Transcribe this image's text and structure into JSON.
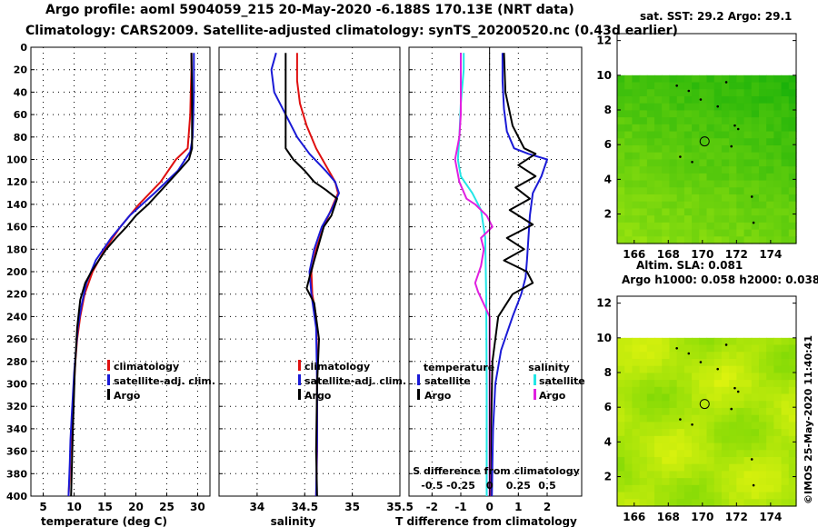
{
  "figure": {
    "title_line1": "Argo profile: aoml 5904059_215 20-May-2020 -6.188S 170.13E (NRT data)",
    "title_line2": "Climatology: CARS2009. Satellite-adjusted climatology: synTS_20200520.nc (0.43d earlier)",
    "credit": "©IMOS 25-May-2020 11:40:41"
  },
  "colors": {
    "climatology": "#e01010",
    "satellite": "#1a1ad6",
    "argo": "#000000",
    "salinity_sat": "#22e6e6",
    "salinity_diff": "#e020e0"
  },
  "chart_data": [
    {
      "id": "temperature",
      "type": "line",
      "xlabel": "temperature (deg C)",
      "ylabel": "",
      "xlim": [
        3,
        32
      ],
      "ylim": [
        400,
        0
      ],
      "xticks": [
        5,
        10,
        15,
        20,
        25,
        30
      ],
      "yticks": [
        0,
        20,
        40,
        60,
        80,
        100,
        120,
        140,
        160,
        180,
        200,
        220,
        240,
        260,
        280,
        300,
        320,
        340,
        360,
        380,
        400
      ],
      "grid": true,
      "legend_position": "lower-right",
      "series": [
        {
          "name": "climatology",
          "color": "#e01010",
          "x": [
            29.0,
            29.0,
            28.9,
            28.8,
            28.4,
            26.5,
            24.0,
            20.5,
            17.5,
            15.0,
            13.0,
            11.7,
            11.0,
            10.5,
            10.2,
            10.0,
            9.8,
            9.6,
            9.4,
            9.3,
            9.1
          ],
          "y": [
            5,
            20,
            40,
            60,
            90,
            100,
            120,
            140,
            160,
            180,
            200,
            220,
            240,
            260,
            280,
            300,
            320,
            340,
            360,
            380,
            400
          ]
        },
        {
          "name": "satellite-adj. clim.",
          "color": "#1a1ad6",
          "x": [
            29.4,
            29.4,
            29.4,
            29.3,
            29.2,
            28.8,
            26.8,
            23.0,
            19.0,
            16.0,
            13.5,
            12.0,
            11.2,
            10.6,
            10.3,
            10.0,
            9.8,
            9.6,
            9.4,
            9.3,
            9.1
          ],
          "y": [
            5,
            20,
            40,
            60,
            80,
            93,
            110,
            130,
            150,
            170,
            190,
            210,
            230,
            250,
            270,
            290,
            310,
            330,
            350,
            370,
            400
          ]
        },
        {
          "name": "Argo",
          "color": "#000000",
          "x": [
            29.0,
            29.1,
            29.1,
            29.1,
            28.6,
            27.0,
            24.5,
            22.0,
            20.0,
            18.5,
            16.8,
            15.2,
            14.0,
            12.8,
            11.8,
            11.0,
            10.5,
            10.1,
            9.8,
            9.5
          ],
          "y": [
            5,
            40,
            80,
            90,
            100,
            110,
            125,
            140,
            150,
            160,
            170,
            180,
            190,
            200,
            210,
            225,
            250,
            290,
            340,
            400
          ]
        }
      ],
      "legend": [
        "climatology",
        "satellite-adj. clim.",
        "Argo"
      ]
    },
    {
      "id": "salinity",
      "type": "line",
      "xlabel": "salinity",
      "xlim": [
        33.6,
        35.5
      ],
      "ylim": [
        400,
        0
      ],
      "xticks": [
        34,
        34.5,
        35,
        35.5
      ],
      "grid": true,
      "legend_position": "lower-right",
      "series": [
        {
          "name": "climatology",
          "color": "#e01010",
          "x": [
            34.42,
            34.42,
            34.45,
            34.52,
            34.62,
            34.72,
            34.82,
            34.85,
            34.8,
            34.7,
            34.62,
            34.57,
            34.58,
            34.62,
            34.63,
            34.63,
            34.63,
            34.62
          ],
          "y": [
            5,
            30,
            50,
            70,
            90,
            105,
            120,
            130,
            140,
            160,
            180,
            200,
            220,
            240,
            280,
            320,
            360,
            400
          ]
        },
        {
          "name": "satellite-adj. clim.",
          "color": "#1a1ad6",
          "x": [
            34.2,
            34.15,
            34.18,
            34.3,
            34.42,
            34.55,
            34.72,
            34.82,
            34.86,
            34.78,
            34.68,
            34.6,
            34.55,
            34.57,
            34.62,
            34.63,
            34.63,
            34.62
          ],
          "y": [
            5,
            20,
            40,
            60,
            80,
            95,
            110,
            120,
            130,
            145,
            160,
            180,
            200,
            220,
            250,
            300,
            350,
            400
          ]
        },
        {
          "name": "Argo",
          "color": "#000000",
          "x": [
            34.3,
            34.3,
            34.3,
            34.38,
            34.5,
            34.6,
            34.72,
            34.84,
            34.78,
            34.7,
            34.65,
            34.6,
            34.55,
            34.52,
            34.6,
            34.65,
            34.63,
            34.62,
            34.63
          ],
          "y": [
            5,
            85,
            90,
            100,
            110,
            120,
            127,
            135,
            150,
            160,
            175,
            190,
            205,
            215,
            228,
            260,
            300,
            360,
            400
          ]
        }
      ],
      "legend": [
        "climatology",
        "satellite-adj. clim.",
        "Argo"
      ]
    },
    {
      "id": "difference",
      "type": "line",
      "xlabel": "T difference from climatology",
      "top_axis_label": "S difference from climatology",
      "xlim": [
        -2.8,
        3.2
      ],
      "ylim": [
        400,
        0
      ],
      "xticks": [
        -2,
        -1,
        0,
        1,
        2
      ],
      "top_ticks": [
        "-0.5",
        "-0.25",
        "0",
        "0.25",
        "0.5"
      ],
      "top_tick_values": [
        -0.5,
        -0.25,
        0,
        0.25,
        0.5
      ],
      "s_scale": 4,
      "grid": true,
      "legend_groups": {
        "left_title": "temperature",
        "right_title": "salinity"
      },
      "series": [
        {
          "name": "satellite",
          "group": "temperature",
          "color": "#1a1ad6",
          "x": [
            0.45,
            0.45,
            0.5,
            0.6,
            0.85,
            1.35,
            2.0,
            1.8,
            1.5,
            1.4,
            1.35,
            1.3,
            1.25,
            1.1,
            0.8,
            0.4,
            0.2,
            0.12,
            0.1,
            0.08
          ],
          "y": [
            5,
            30,
            55,
            75,
            90,
            95,
            100,
            115,
            130,
            150,
            170,
            190,
            205,
            220,
            240,
            270,
            300,
            340,
            370,
            400
          ]
        },
        {
          "name": "Argo",
          "group": "temperature",
          "color": "#000000",
          "x": [
            0.5,
            0.55,
            0.8,
            1.2,
            1.6,
            1.0,
            1.6,
            0.9,
            1.4,
            0.7,
            1.5,
            0.6,
            1.2,
            0.5,
            1.3,
            1.5,
            0.8,
            0.3,
            0.1,
            0.05,
            0.02
          ],
          "y": [
            5,
            40,
            70,
            90,
            95,
            105,
            115,
            125,
            135,
            145,
            158,
            170,
            180,
            190,
            200,
            210,
            220,
            240,
            280,
            340,
            400
          ]
        },
        {
          "name": "satellite",
          "group": "salinity",
          "color": "#22e6e6",
          "x": [
            -0.9,
            -0.9,
            -1.0,
            -1.05,
            -1.1,
            -1.0,
            -0.6,
            -0.3,
            -0.15,
            -0.12,
            -0.1,
            -0.1
          ],
          "y": [
            5,
            20,
            50,
            80,
            100,
            115,
            130,
            145,
            170,
            220,
            300,
            400
          ]
        },
        {
          "name": "Argo",
          "group": "salinity",
          "color": "#e020e0",
          "x": [
            -1.0,
            -1.0,
            -1.05,
            -1.2,
            -1.05,
            -0.8,
            -0.5,
            -0.1,
            0.1,
            -0.3,
            -0.2,
            -0.3,
            -0.5,
            -0.4,
            0.0,
            0.0
          ],
          "y": [
            5,
            60,
            80,
            100,
            120,
            135,
            140,
            150,
            160,
            170,
            180,
            195,
            210,
            218,
            240,
            400
          ]
        }
      ]
    }
  ],
  "maps": [
    {
      "id": "sst-map",
      "title": "sat. SST: 29.2 Argo: 29.1",
      "xticks": [
        166,
        168,
        170,
        172,
        174
      ],
      "yticks": [
        2,
        4,
        6,
        8,
        10,
        12
      ],
      "xlim": [
        165,
        175.5
      ],
      "ylim": [
        0.3,
        12.4
      ],
      "data_top": 10,
      "argo_lon": 170.13,
      "argo_lat": 6.188
    },
    {
      "id": "sla-map",
      "title_line1": "Altim. SLA: 0.081",
      "title_line2": "Argo h1000: 0.058 h2000: 0.038",
      "xticks": [
        166,
        168,
        170,
        172,
        174
      ],
      "yticks": [
        2,
        4,
        6,
        8,
        10,
        12
      ],
      "xlim": [
        165,
        175.5
      ],
      "ylim": [
        0.3,
        12.4
      ],
      "data_top": 10,
      "argo_lon": 170.13,
      "argo_lat": 6.188
    }
  ]
}
